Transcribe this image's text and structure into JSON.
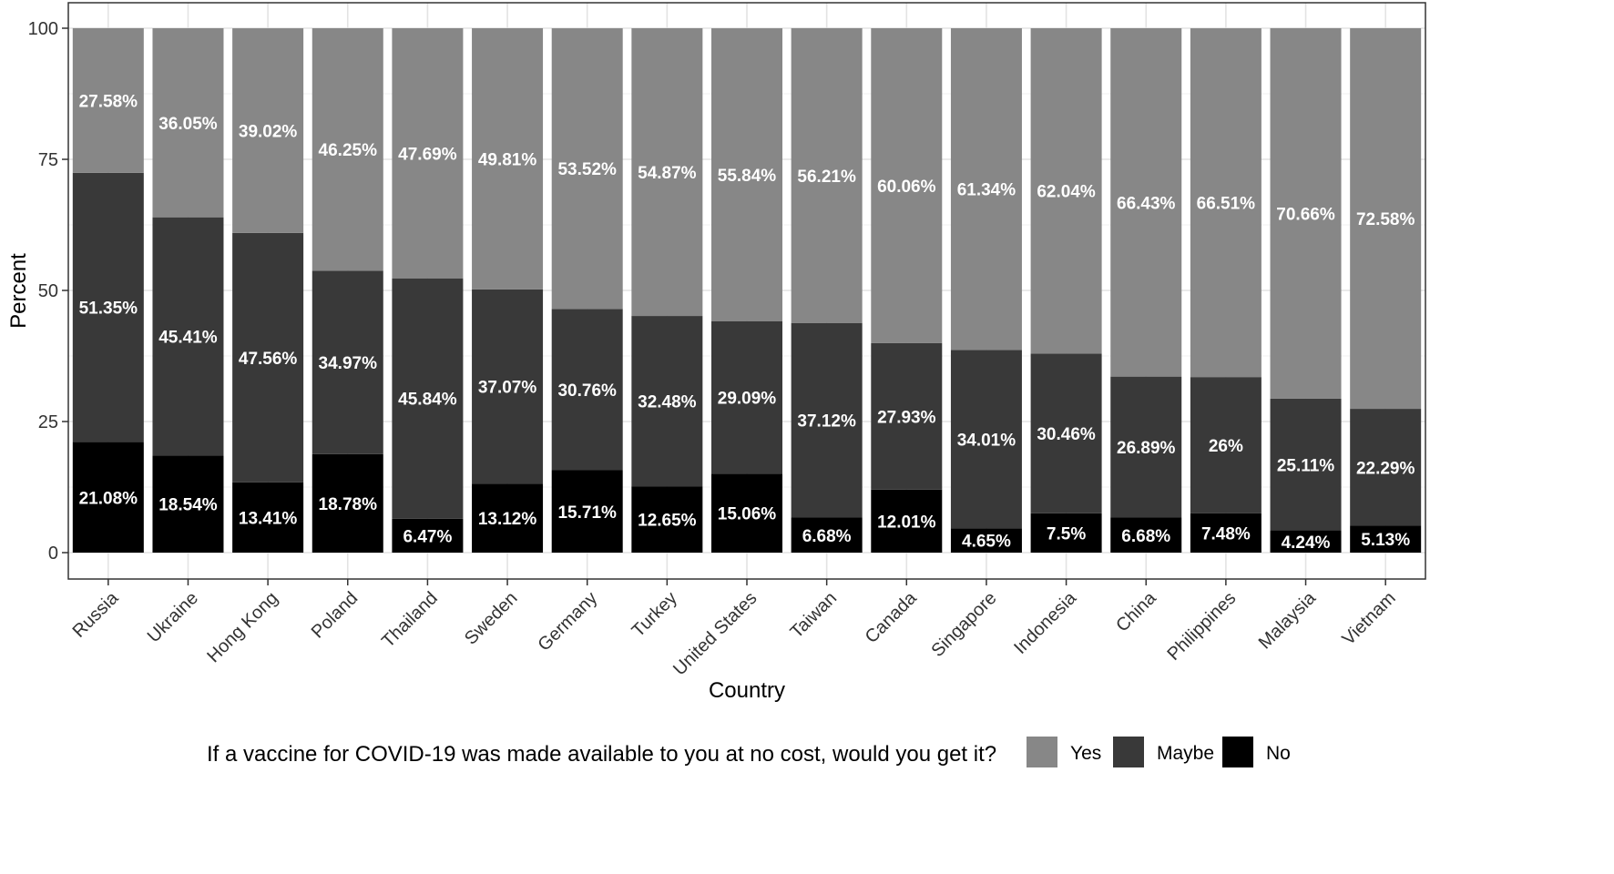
{
  "chart_data": {
    "type": "bar",
    "stacked": true,
    "xlabel": "Country",
    "ylabel": "Percent",
    "ylim": [
      0,
      100
    ],
    "yticks": [
      0,
      25,
      50,
      75,
      100
    ],
    "grid": true,
    "legend_position": "bottom",
    "legend_title": "If a vaccine for COVID-19 was made available to you at no cost, would you get it?",
    "categories": [
      "Russia",
      "Ukraine",
      "Hong Kong",
      "Poland",
      "Thailand",
      "Sweden",
      "Germany",
      "Turkey",
      "United States",
      "Taiwan",
      "Canada",
      "Singapore",
      "Indonesia",
      "China",
      "Philippines",
      "Malaysia",
      "Vietnam"
    ],
    "series": [
      {
        "name": "No",
        "color": "#000000",
        "values": [
          21.08,
          18.54,
          13.41,
          18.78,
          6.47,
          13.12,
          15.71,
          12.65,
          15.06,
          6.68,
          12.01,
          4.65,
          7.5,
          6.68,
          7.48,
          4.24,
          5.13
        ],
        "labels": [
          "21.08%",
          "18.54%",
          "13.41%",
          "18.78%",
          "6.47%",
          "13.12%",
          "15.71%",
          "12.65%",
          "15.06%",
          "6.68%",
          "12.01%",
          "4.65%",
          "7.5%",
          "6.68%",
          "7.48%",
          "4.24%",
          "5.13%"
        ]
      },
      {
        "name": "Maybe",
        "color": "#393939",
        "values": [
          51.35,
          45.41,
          47.56,
          34.97,
          45.84,
          37.07,
          30.76,
          32.48,
          29.09,
          37.12,
          27.93,
          34.01,
          30.46,
          26.89,
          26,
          25.11,
          22.29
        ],
        "labels": [
          "51.35%",
          "45.41%",
          "47.56%",
          "34.97%",
          "45.84%",
          "37.07%",
          "30.76%",
          "32.48%",
          "29.09%",
          "37.12%",
          "27.93%",
          "34.01%",
          "30.46%",
          "26.89%",
          "26%",
          "25.11%",
          "22.29%"
        ]
      },
      {
        "name": "Yes",
        "color": "#878787",
        "values": [
          27.58,
          36.05,
          39.02,
          46.25,
          47.69,
          49.81,
          53.52,
          54.87,
          55.84,
          56.21,
          60.06,
          61.34,
          62.04,
          66.43,
          66.51,
          70.66,
          72.58
        ],
        "labels": [
          "27.58%",
          "36.05%",
          "39.02%",
          "46.25%",
          "47.69%",
          "49.81%",
          "53.52%",
          "54.87%",
          "55.84%",
          "56.21%",
          "60.06%",
          "61.34%",
          "62.04%",
          "66.43%",
          "66.51%",
          "70.66%",
          "72.58%"
        ]
      }
    ],
    "legend_order": [
      "Yes",
      "Maybe",
      "No"
    ]
  }
}
